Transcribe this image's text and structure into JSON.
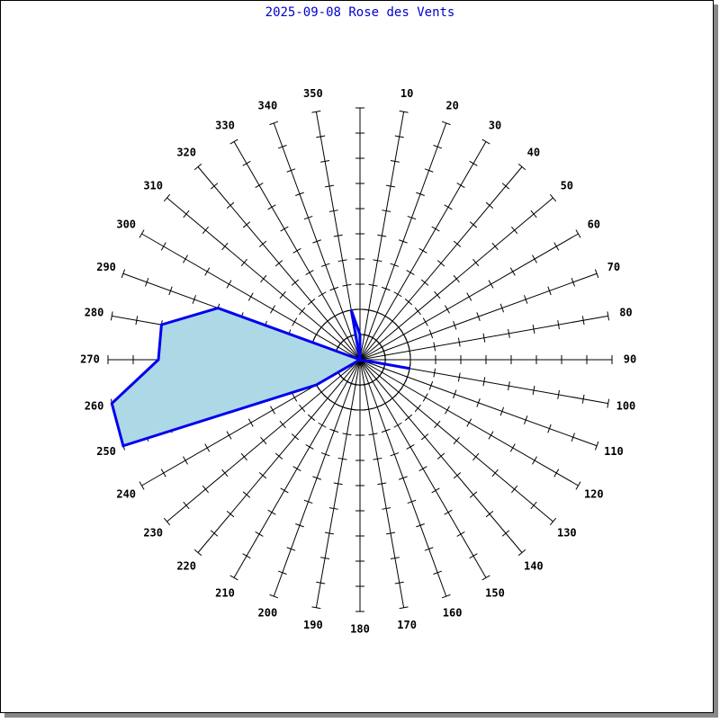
{
  "chart_data": {
    "type": "radar",
    "title": "2025-09-08 Rose des Vents",
    "categories": [
      null,
      10,
      20,
      30,
      40,
      50,
      60,
      70,
      80,
      90,
      100,
      110,
      120,
      130,
      140,
      150,
      160,
      170,
      180,
      190,
      200,
      210,
      220,
      230,
      240,
      250,
      260,
      270,
      280,
      290,
      300,
      310,
      320,
      330,
      340,
      350
    ],
    "series": [
      {
        "color": "#0000ee",
        "fill": "#add8e6",
        "values": [
          1,
          0,
          0,
          0,
          0,
          0,
          0,
          0,
          0,
          0,
          2,
          0,
          0,
          0,
          0,
          0,
          0,
          0,
          0,
          0,
          0,
          0,
          0,
          0,
          2,
          10,
          10,
          8,
          8,
          6,
          0,
          0,
          0,
          0,
          0,
          2
        ]
      }
    ],
    "rlim": [
      0,
      10
    ],
    "rticks": [
      1,
      2,
      3,
      4,
      5,
      6,
      7,
      8,
      9,
      10
    ]
  }
}
